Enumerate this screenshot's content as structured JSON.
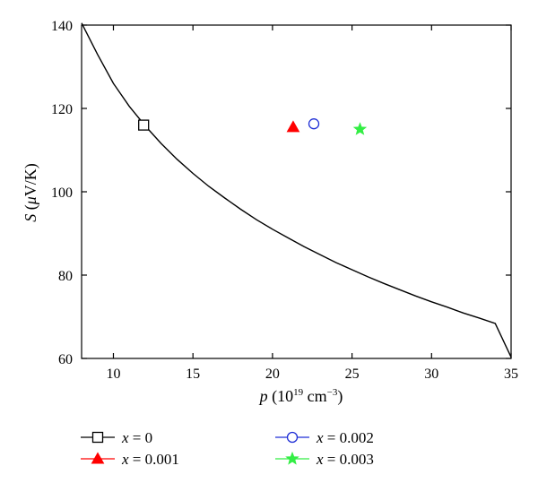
{
  "chart_data": {
    "type": "scatter",
    "xlabel": {
      "var": "p",
      "unit_prefix": " (10",
      "unit_exp": "19",
      "unit_mid": " cm",
      "unit_exp2": "−3",
      "unit_suffix": ")"
    },
    "ylabel": {
      "var": "S",
      "unit_prefix": " (",
      "unit_mu": "μ",
      "unit_suffix": "V/K)"
    },
    "xlim": [
      8,
      35
    ],
    "ylim": [
      60,
      140
    ],
    "xticks": [
      10,
      15,
      20,
      25,
      30,
      35
    ],
    "yticks": [
      60,
      80,
      100,
      120,
      140
    ],
    "grid": false,
    "legend_position": "bottom",
    "curve": {
      "x": [
        8.0,
        9.0,
        10.0,
        11.0,
        12.0,
        13.0,
        14.0,
        15.0,
        16.0,
        17.0,
        18.0,
        19.0,
        20.0,
        21.0,
        22.0,
        23.0,
        24.0,
        25.0,
        26.0,
        27.0,
        28.0,
        29.0,
        30.0,
        31.0,
        32.0,
        33.0,
        34.0,
        35.0
      ],
      "y": [
        140.5,
        133.0,
        126.0,
        120.5,
        115.8,
        111.6,
        107.8,
        104.4,
        101.3,
        98.5,
        95.8,
        93.3,
        91.0,
        88.9,
        86.8,
        84.9,
        83.0,
        81.3,
        79.6,
        78.0,
        76.5,
        75.0,
        73.6,
        72.3,
        70.9,
        69.7,
        68.4,
        60.3
      ],
      "color": "#000000"
    },
    "series": [
      {
        "name": "x = 0",
        "var": "x",
        "rest": " = 0",
        "x": [
          11.9
        ],
        "y": [
          116
        ],
        "marker": "square",
        "color": "#000000",
        "filled": false
      },
      {
        "name": "x = 0.001",
        "var": "x",
        "rest": " = 0.001",
        "x": [
          21.3
        ],
        "y": [
          115.5
        ],
        "marker": "triangle",
        "color": "#ff0000",
        "filled": true
      },
      {
        "name": "x = 0.002",
        "var": "x",
        "rest": " = 0.002",
        "x": [
          22.6
        ],
        "y": [
          116.3
        ],
        "marker": "circle",
        "color": "#1f2fd6",
        "filled": false
      },
      {
        "name": "x = 0.003",
        "var": "x",
        "rest": " = 0.003",
        "x": [
          25.5
        ],
        "y": [
          115
        ],
        "marker": "star",
        "color": "#33ee44",
        "filled": true
      }
    ]
  }
}
